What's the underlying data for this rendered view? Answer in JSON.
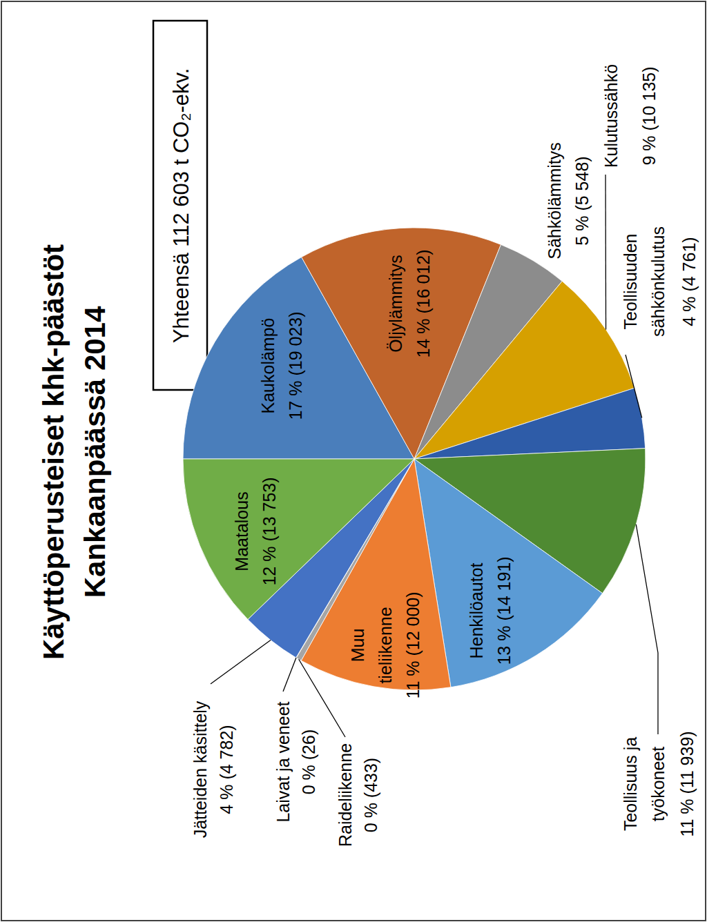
{
  "chart_data": {
    "type": "pie",
    "title": "Käyttöperusteiset khk-päästöt Kankaanpäässä 2014",
    "annotations": [
      "Yhteensä 112 603 t CO₂-ekv."
    ],
    "categories": [
      "Kaukolämpö",
      "Öljylämmitys",
      "Sähkölämmitys",
      "Kulutussähkö",
      "Teollisuuden sähkönkulutus",
      "Teollisuus ja työkoneet",
      "Henkilöautot",
      "Muu tieliikenne",
      "Raideliikenne",
      "Laivat ja veneet",
      "Jätteiden käsittely",
      "Maatalous"
    ],
    "values": [
      19023,
      16012,
      5548,
      10135,
      4761,
      11939,
      14191,
      12000,
      433,
      26,
      4782,
      13753
    ],
    "value_labels": [
      "17 % (19 023)",
      "14 % (16 012)",
      "5 % (5 548)",
      "9 % (10 135)",
      "4 % (4 761)",
      "11 % (11 939)",
      "13 % (14 191)",
      "11 % (12 000)",
      "0 % (433)",
      "0 % (26)",
      "4 % (4 782)",
      "12 % (13 753)"
    ],
    "colors": [
      "#4a7ebb",
      "#c0642b",
      "#8c8c8c",
      "#d6a000",
      "#2e5ca8",
      "#4f8a32",
      "#5b9bd5",
      "#ed7d31",
      "#a5a5a5",
      "#ffc000",
      "#4472c4",
      "#70ad47"
    ],
    "data_labels": true
  }
}
